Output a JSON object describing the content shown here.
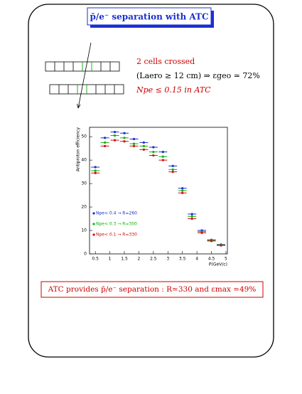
{
  "title": "p̄/e⁻ separation with ATC",
  "notes": [
    "2 cells crossed",
    "(Laero ≥ 12 cm) ⇒ εgeo ≃ 72%",
    "Npe ≤ 0.15 in ATC"
  ],
  "conclusion": "ATC provides p̄/e⁻ separation : R≃330 and εmax ≃49%",
  "chart_data": {
    "type": "scatter",
    "xlabel": "P(GeV/c)",
    "ylabel": "Antiproton efficiency",
    "x": [
      0.5,
      0.83,
      1.17,
      1.5,
      1.83,
      2.17,
      2.5,
      2.83,
      3.17,
      3.5,
      3.83,
      4.17,
      4.5,
      4.83
    ],
    "series": [
      {
        "name": "Npe< 0.4 → R=260",
        "color": "#1a2fd0",
        "values": [
          37,
          49.5,
          52,
          51.5,
          49,
          47.5,
          45.5,
          43.5,
          37.5,
          28,
          17,
          10,
          6,
          4
        ]
      },
      {
        "name": "Npe< 0.3 → R=300",
        "color": "#10b010",
        "values": [
          35.5,
          47.5,
          50.5,
          49.5,
          47,
          46,
          43.5,
          41.5,
          36,
          27,
          16,
          9.5,
          5.8,
          3.8
        ]
      },
      {
        "name": "Npe< 0.1 → R=330",
        "color": "#d01010",
        "values": [
          34.5,
          46,
          48.5,
          48,
          46,
          44.5,
          42,
          40,
          35,
          26,
          15,
          9,
          5.5,
          3.6
        ]
      }
    ],
    "xlim": [
      0.3,
      5.05
    ],
    "ylim": [
      0,
      54
    ],
    "xticks": [
      0.5,
      1,
      1.5,
      2,
      2.5,
      3,
      3.5,
      4,
      4.5,
      5
    ],
    "yticks": [
      0,
      10,
      20,
      30,
      40,
      50
    ]
  }
}
